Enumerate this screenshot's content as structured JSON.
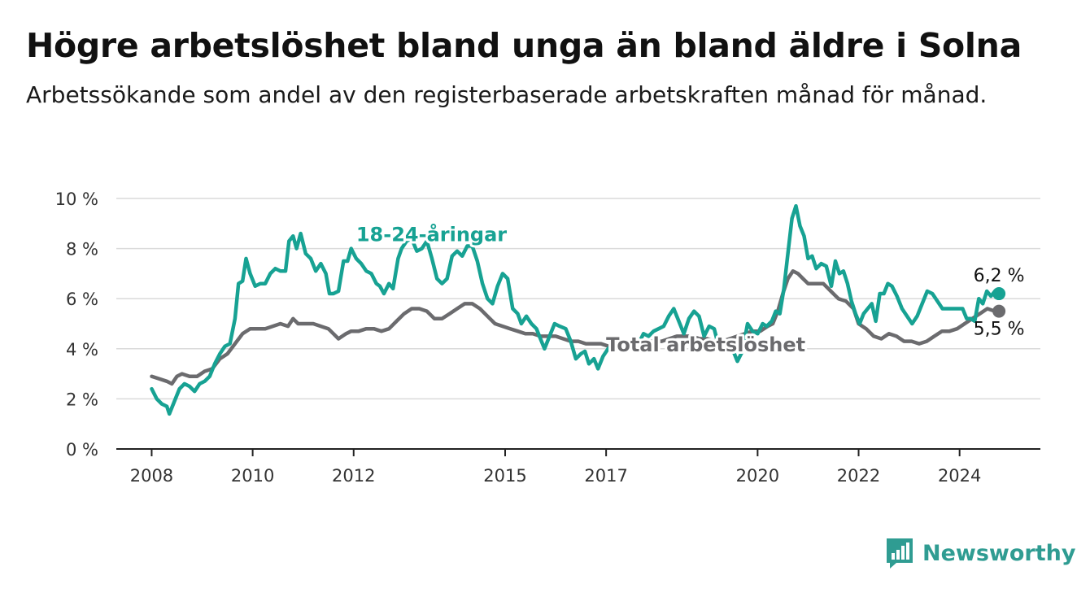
{
  "title": "Högre arbetslöshet bland unga än bland äldre i Solna",
  "subtitle": "Arbetssökande som andel av den registerbaserade arbetskraften månad för månad.",
  "brand": {
    "name": "Newsworthy",
    "icon": "bar-chart-logo-icon",
    "color": "#2f9c92"
  },
  "chart_data": {
    "type": "line",
    "ylim": [
      0,
      10
    ],
    "xlim": [
      2007.3,
      2025.6
    ],
    "y_ticks": [
      0,
      2,
      4,
      6,
      8,
      10
    ],
    "y_tick_labels": [
      "0 %",
      "2 %",
      "4 %",
      "6 %",
      "8 %",
      "10 %"
    ],
    "x_ticks": [
      2008,
      2010,
      2012,
      2015,
      2017,
      2020,
      2022,
      2024
    ],
    "x_tick_labels": [
      "2008",
      "2010",
      "2012",
      "2015",
      "2017",
      "2020",
      "2022",
      "2024"
    ],
    "grid": true,
    "series": [
      {
        "name": "18-24-åringar",
        "color": "#17a293",
        "end_label": "6,2 %",
        "points": [
          [
            2008.0,
            2.4
          ],
          [
            2008.1,
            2.0
          ],
          [
            2008.2,
            1.8
          ],
          [
            2008.3,
            1.7
          ],
          [
            2008.35,
            1.4
          ],
          [
            2008.45,
            1.9
          ],
          [
            2008.55,
            2.4
          ],
          [
            2008.65,
            2.6
          ],
          [
            2008.75,
            2.5
          ],
          [
            2008.85,
            2.3
          ],
          [
            2008.95,
            2.6
          ],
          [
            2009.05,
            2.7
          ],
          [
            2009.15,
            2.9
          ],
          [
            2009.25,
            3.4
          ],
          [
            2009.35,
            3.8
          ],
          [
            2009.45,
            4.1
          ],
          [
            2009.55,
            4.2
          ],
          [
            2009.65,
            5.2
          ],
          [
            2009.72,
            6.6
          ],
          [
            2009.8,
            6.7
          ],
          [
            2009.87,
            7.6
          ],
          [
            2009.95,
            7.0
          ],
          [
            2010.05,
            6.5
          ],
          [
            2010.15,
            6.6
          ],
          [
            2010.25,
            6.6
          ],
          [
            2010.35,
            7.0
          ],
          [
            2010.45,
            7.2
          ],
          [
            2010.55,
            7.1
          ],
          [
            2010.65,
            7.1
          ],
          [
            2010.72,
            8.3
          ],
          [
            2010.8,
            8.5
          ],
          [
            2010.87,
            8.0
          ],
          [
            2010.95,
            8.6
          ],
          [
            2011.05,
            7.8
          ],
          [
            2011.15,
            7.6
          ],
          [
            2011.25,
            7.1
          ],
          [
            2011.35,
            7.4
          ],
          [
            2011.45,
            7.0
          ],
          [
            2011.52,
            6.2
          ],
          [
            2011.6,
            6.2
          ],
          [
            2011.7,
            6.3
          ],
          [
            2011.8,
            7.5
          ],
          [
            2011.88,
            7.5
          ],
          [
            2011.95,
            8.0
          ],
          [
            2012.05,
            7.6
          ],
          [
            2012.15,
            7.4
          ],
          [
            2012.25,
            7.1
          ],
          [
            2012.35,
            7.0
          ],
          [
            2012.45,
            6.6
          ],
          [
            2012.52,
            6.5
          ],
          [
            2012.6,
            6.2
          ],
          [
            2012.7,
            6.6
          ],
          [
            2012.78,
            6.4
          ],
          [
            2012.88,
            7.6
          ],
          [
            2012.95,
            8.0
          ],
          [
            2013.05,
            8.3
          ],
          [
            2013.15,
            8.4
          ],
          [
            2013.25,
            7.9
          ],
          [
            2013.35,
            8.0
          ],
          [
            2013.45,
            8.3
          ],
          [
            2013.55,
            7.6
          ],
          [
            2013.65,
            6.8
          ],
          [
            2013.75,
            6.6
          ],
          [
            2013.85,
            6.8
          ],
          [
            2013.95,
            7.7
          ],
          [
            2014.05,
            7.9
          ],
          [
            2014.15,
            7.7
          ],
          [
            2014.25,
            8.1
          ],
          [
            2014.35,
            8.1
          ],
          [
            2014.45,
            7.5
          ],
          [
            2014.55,
            6.6
          ],
          [
            2014.65,
            6.0
          ],
          [
            2014.75,
            5.8
          ],
          [
            2014.85,
            6.5
          ],
          [
            2014.95,
            7.0
          ],
          [
            2015.05,
            6.8
          ],
          [
            2015.15,
            5.6
          ],
          [
            2015.25,
            5.4
          ],
          [
            2015.32,
            5.0
          ],
          [
            2015.42,
            5.3
          ],
          [
            2015.52,
            5.0
          ],
          [
            2015.62,
            4.8
          ],
          [
            2015.7,
            4.4
          ],
          [
            2015.78,
            4.0
          ],
          [
            2015.88,
            4.5
          ],
          [
            2015.98,
            5.0
          ],
          [
            2016.08,
            4.9
          ],
          [
            2016.2,
            4.8
          ],
          [
            2016.3,
            4.3
          ],
          [
            2016.4,
            3.6
          ],
          [
            2016.5,
            3.8
          ],
          [
            2016.58,
            3.9
          ],
          [
            2016.66,
            3.4
          ],
          [
            2016.76,
            3.6
          ],
          [
            2016.84,
            3.2
          ],
          [
            2016.94,
            3.7
          ],
          [
            2017.04,
            4.0
          ],
          [
            2017.14,
            4.2
          ],
          [
            2017.24,
            4.1
          ],
          [
            2017.34,
            4.3
          ],
          [
            2017.44,
            4.0
          ],
          [
            2017.54,
            4.3
          ],
          [
            2017.64,
            4.2
          ],
          [
            2017.74,
            4.6
          ],
          [
            2017.84,
            4.5
          ],
          [
            2017.94,
            4.7
          ],
          [
            2018.04,
            4.8
          ],
          [
            2018.14,
            4.9
          ],
          [
            2018.24,
            5.3
          ],
          [
            2018.34,
            5.6
          ],
          [
            2018.44,
            5.1
          ],
          [
            2018.54,
            4.6
          ],
          [
            2018.64,
            5.2
          ],
          [
            2018.74,
            5.5
          ],
          [
            2018.84,
            5.3
          ],
          [
            2018.94,
            4.5
          ],
          [
            2019.04,
            4.9
          ],
          [
            2019.14,
            4.8
          ],
          [
            2019.24,
            4.0
          ],
          [
            2019.34,
            3.9
          ],
          [
            2019.44,
            4.1
          ],
          [
            2019.54,
            3.8
          ],
          [
            2019.6,
            3.5
          ],
          [
            2019.7,
            3.9
          ],
          [
            2019.8,
            5.0
          ],
          [
            2019.9,
            4.7
          ],
          [
            2020.0,
            4.6
          ],
          [
            2020.1,
            5.0
          ],
          [
            2020.18,
            4.9
          ],
          [
            2020.28,
            5.1
          ],
          [
            2020.36,
            5.5
          ],
          [
            2020.44,
            5.4
          ],
          [
            2020.52,
            6.4
          ],
          [
            2020.6,
            7.8
          ],
          [
            2020.68,
            9.2
          ],
          [
            2020.76,
            9.7
          ],
          [
            2020.84,
            8.9
          ],
          [
            2020.92,
            8.5
          ],
          [
            2021.0,
            7.6
          ],
          [
            2021.08,
            7.7
          ],
          [
            2021.16,
            7.2
          ],
          [
            2021.26,
            7.4
          ],
          [
            2021.36,
            7.3
          ],
          [
            2021.46,
            6.5
          ],
          [
            2021.54,
            7.5
          ],
          [
            2021.62,
            7.0
          ],
          [
            2021.7,
            7.1
          ],
          [
            2021.78,
            6.6
          ],
          [
            2021.86,
            5.9
          ],
          [
            2021.94,
            5.4
          ],
          [
            2022.02,
            5.0
          ],
          [
            2022.1,
            5.4
          ],
          [
            2022.18,
            5.6
          ],
          [
            2022.26,
            5.8
          ],
          [
            2022.34,
            5.1
          ],
          [
            2022.42,
            6.2
          ],
          [
            2022.5,
            6.2
          ],
          [
            2022.58,
            6.6
          ],
          [
            2022.66,
            6.5
          ],
          [
            2022.76,
            6.1
          ],
          [
            2022.86,
            5.6
          ],
          [
            2022.96,
            5.3
          ],
          [
            2023.06,
            5.0
          ],
          [
            2023.16,
            5.3
          ],
          [
            2023.26,
            5.8
          ],
          [
            2023.36,
            6.3
          ],
          [
            2023.46,
            6.2
          ],
          [
            2023.56,
            5.9
          ],
          [
            2023.66,
            5.6
          ],
          [
            2023.76,
            5.6
          ],
          [
            2023.86,
            5.6
          ],
          [
            2023.96,
            5.6
          ],
          [
            2024.06,
            5.6
          ],
          [
            2024.14,
            5.2
          ],
          [
            2024.22,
            5.2
          ],
          [
            2024.3,
            5.1
          ],
          [
            2024.38,
            6.0
          ],
          [
            2024.46,
            5.8
          ],
          [
            2024.54,
            6.3
          ],
          [
            2024.62,
            6.1
          ],
          [
            2024.7,
            6.3
          ],
          [
            2024.78,
            6.2
          ]
        ]
      },
      {
        "name": "Total arbetslöshet",
        "color": "#6b6b6e",
        "end_label": "5,5 %",
        "points": [
          [
            2008.0,
            2.9
          ],
          [
            2008.15,
            2.8
          ],
          [
            2008.3,
            2.7
          ],
          [
            2008.4,
            2.6
          ],
          [
            2008.5,
            2.9
          ],
          [
            2008.6,
            3.0
          ],
          [
            2008.75,
            2.9
          ],
          [
            2008.9,
            2.9
          ],
          [
            2009.05,
            3.1
          ],
          [
            2009.2,
            3.2
          ],
          [
            2009.35,
            3.6
          ],
          [
            2009.5,
            3.8
          ],
          [
            2009.65,
            4.2
          ],
          [
            2009.8,
            4.6
          ],
          [
            2009.95,
            4.8
          ],
          [
            2010.1,
            4.8
          ],
          [
            2010.25,
            4.8
          ],
          [
            2010.4,
            4.9
          ],
          [
            2010.55,
            5.0
          ],
          [
            2010.7,
            4.9
          ],
          [
            2010.8,
            5.2
          ],
          [
            2010.9,
            5.0
          ],
          [
            2011.05,
            5.0
          ],
          [
            2011.2,
            5.0
          ],
          [
            2011.35,
            4.9
          ],
          [
            2011.5,
            4.8
          ],
          [
            2011.6,
            4.6
          ],
          [
            2011.7,
            4.4
          ],
          [
            2011.85,
            4.6
          ],
          [
            2011.95,
            4.7
          ],
          [
            2012.1,
            4.7
          ],
          [
            2012.25,
            4.8
          ],
          [
            2012.4,
            4.8
          ],
          [
            2012.55,
            4.7
          ],
          [
            2012.7,
            4.8
          ],
          [
            2012.85,
            5.1
          ],
          [
            2013.0,
            5.4
          ],
          [
            2013.15,
            5.6
          ],
          [
            2013.3,
            5.6
          ],
          [
            2013.45,
            5.5
          ],
          [
            2013.6,
            5.2
          ],
          [
            2013.75,
            5.2
          ],
          [
            2013.9,
            5.4
          ],
          [
            2014.05,
            5.6
          ],
          [
            2014.2,
            5.8
          ],
          [
            2014.35,
            5.8
          ],
          [
            2014.5,
            5.6
          ],
          [
            2014.65,
            5.3
          ],
          [
            2014.8,
            5.0
          ],
          [
            2014.95,
            4.9
          ],
          [
            2015.1,
            4.8
          ],
          [
            2015.25,
            4.7
          ],
          [
            2015.4,
            4.6
          ],
          [
            2015.55,
            4.6
          ],
          [
            2015.7,
            4.5
          ],
          [
            2015.85,
            4.5
          ],
          [
            2016.0,
            4.5
          ],
          [
            2016.15,
            4.4
          ],
          [
            2016.3,
            4.3
          ],
          [
            2016.45,
            4.3
          ],
          [
            2016.6,
            4.2
          ],
          [
            2016.75,
            4.2
          ],
          [
            2016.9,
            4.2
          ],
          [
            2017.05,
            4.1
          ],
          [
            2017.2,
            4.1
          ],
          [
            2017.35,
            4.0
          ],
          [
            2017.5,
            4.1
          ],
          [
            2017.65,
            4.2
          ],
          [
            2017.8,
            4.3
          ],
          [
            2017.95,
            4.3
          ],
          [
            2018.1,
            4.3
          ],
          [
            2018.25,
            4.4
          ],
          [
            2018.4,
            4.5
          ],
          [
            2018.55,
            4.5
          ],
          [
            2018.7,
            4.5
          ],
          [
            2018.85,
            4.4
          ],
          [
            2019.0,
            4.4
          ],
          [
            2019.15,
            4.3
          ],
          [
            2019.3,
            4.3
          ],
          [
            2019.45,
            4.4
          ],
          [
            2019.6,
            4.5
          ],
          [
            2019.75,
            4.6
          ],
          [
            2019.9,
            4.7
          ],
          [
            2020.05,
            4.7
          ],
          [
            2020.2,
            4.9
          ],
          [
            2020.3,
            5.0
          ],
          [
            2020.4,
            5.5
          ],
          [
            2020.5,
            6.2
          ],
          [
            2020.6,
            6.8
          ],
          [
            2020.7,
            7.1
          ],
          [
            2020.8,
            7.0
          ],
          [
            2020.9,
            6.8
          ],
          [
            2021.0,
            6.6
          ],
          [
            2021.15,
            6.6
          ],
          [
            2021.3,
            6.6
          ],
          [
            2021.45,
            6.3
          ],
          [
            2021.6,
            6.0
          ],
          [
            2021.75,
            5.9
          ],
          [
            2021.9,
            5.6
          ],
          [
            2022.0,
            5.0
          ],
          [
            2022.15,
            4.8
          ],
          [
            2022.3,
            4.5
          ],
          [
            2022.45,
            4.4
          ],
          [
            2022.6,
            4.6
          ],
          [
            2022.75,
            4.5
          ],
          [
            2022.9,
            4.3
          ],
          [
            2023.05,
            4.3
          ],
          [
            2023.2,
            4.2
          ],
          [
            2023.35,
            4.3
          ],
          [
            2023.5,
            4.5
          ],
          [
            2023.65,
            4.7
          ],
          [
            2023.8,
            4.7
          ],
          [
            2023.95,
            4.8
          ],
          [
            2024.1,
            5.0
          ],
          [
            2024.25,
            5.2
          ],
          [
            2024.4,
            5.4
          ],
          [
            2024.55,
            5.6
          ],
          [
            2024.7,
            5.5
          ],
          [
            2024.78,
            5.5
          ]
        ]
      }
    ]
  }
}
